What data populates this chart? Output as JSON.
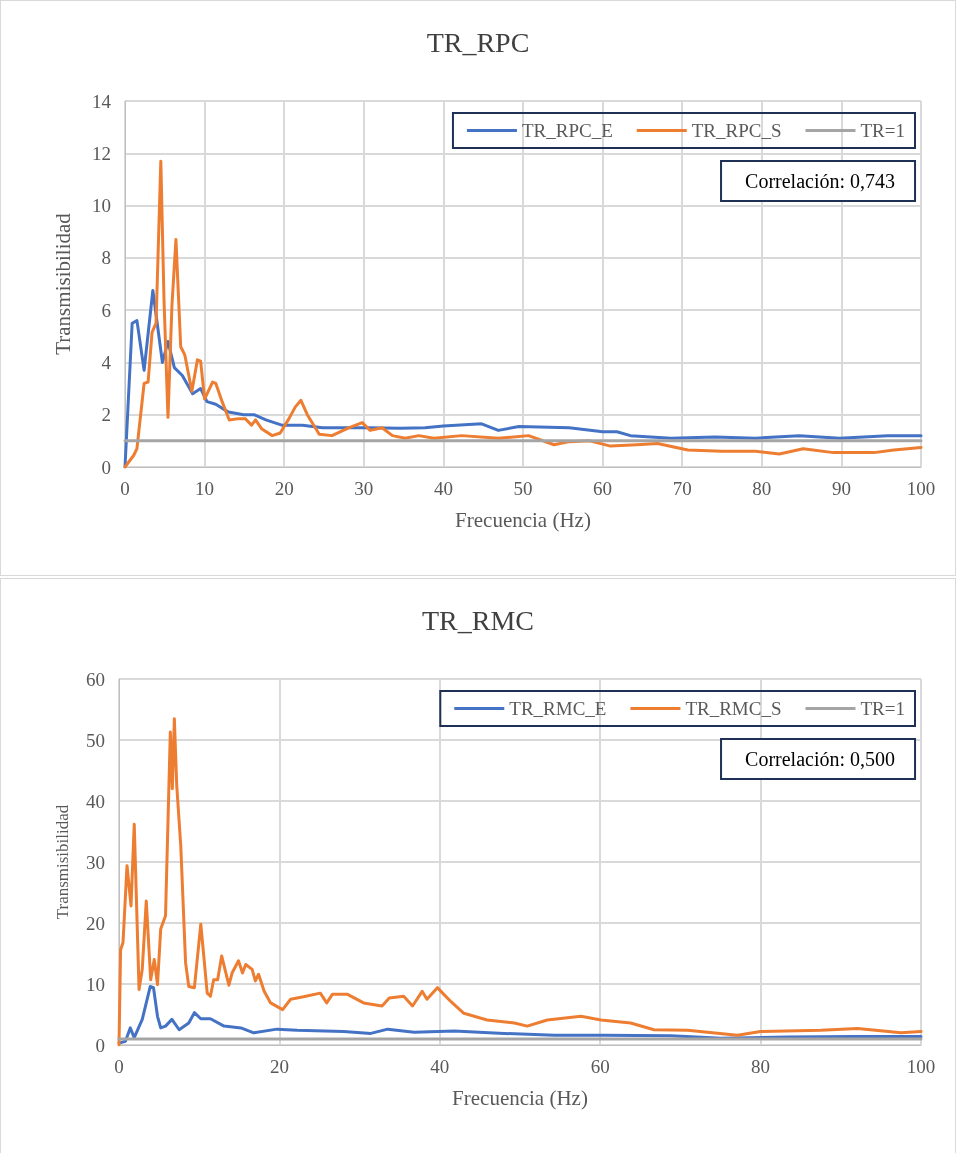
{
  "chart_data": [
    {
      "type": "line",
      "title": "TR_RPC",
      "xlabel": "Frecuencia (Hz)",
      "ylabel": "Transmisibilidad",
      "annotations": [
        "Correlación: 0,743"
      ],
      "xlim": [
        0,
        100
      ],
      "xticks": [
        0,
        10,
        20,
        30,
        40,
        50,
        60,
        70,
        80,
        90,
        100
      ],
      "ylim": [
        0,
        14
      ],
      "yticks": [
        0,
        2,
        4,
        6,
        8,
        10,
        12,
        14
      ],
      "grid": true,
      "legend": "top right",
      "marker": "none",
      "line_style": "solid",
      "series": [
        {
          "name": "TR_RPC_E",
          "color": "#4472c4",
          "x": [
            0,
            0.9,
            1.5,
            2.4,
            3.5,
            4.7,
            5.4,
            6.2,
            7.2,
            8.5,
            9.5,
            10.3,
            11.4,
            13,
            14.9,
            16.2,
            17.7,
            19.7,
            22.3,
            24.8,
            28.1,
            30.6,
            34.6,
            37.7,
            40,
            44.8,
            46.9,
            49.5,
            55.8,
            60,
            61.8,
            63.5,
            68.6,
            74.1,
            79.2,
            84.7,
            89.8,
            95.8,
            100
          ],
          "values": [
            0,
            5.5,
            5.6,
            3.7,
            6.75,
            4.0,
            4.8,
            3.8,
            3.5,
            2.8,
            3.0,
            2.5,
            2.4,
            2.1,
            2.0,
            2.0,
            1.8,
            1.6,
            1.6,
            1.5,
            1.5,
            1.5,
            1.48,
            1.5,
            1.57,
            1.65,
            1.4,
            1.55,
            1.5,
            1.35,
            1.35,
            1.2,
            1.1,
            1.15,
            1.1,
            1.2,
            1.1,
            1.2,
            1.2
          ]
        },
        {
          "name": "TR_RPC_S",
          "color": "#ed7d31",
          "x": [
            0,
            1.1,
            1.5,
            2.4,
            2.9,
            3.4,
            3.9,
            4.5,
            4.9,
            5.4,
            5.9,
            6.4,
            7.0,
            7.5,
            8.4,
            9.1,
            9.5,
            10.0,
            11.0,
            11.4,
            12.2,
            13.1,
            14.3,
            15.1,
            15.9,
            16.4,
            17.2,
            18.5,
            19.5,
            20.6,
            21.4,
            22.1,
            22.9,
            23.5,
            24.4,
            26.0,
            28.1,
            29.8,
            30.8,
            32.3,
            33.6,
            35.2,
            36.9,
            38.8,
            42.3,
            46.9,
            50.7,
            53.9,
            55.8,
            58.4,
            61,
            64.3,
            66.9,
            70.7,
            75,
            79.2,
            82.2,
            85.2,
            89,
            94.1,
            96.6,
            100
          ],
          "values": [
            0,
            0.45,
            0.7,
            3.2,
            3.25,
            5.15,
            5.5,
            11.7,
            6.4,
            1.9,
            6.2,
            8.7,
            4.6,
            4.3,
            2.9,
            4.1,
            4.05,
            2.6,
            3.25,
            3.2,
            2.5,
            1.8,
            1.85,
            1.85,
            1.6,
            1.8,
            1.45,
            1.2,
            1.3,
            1.85,
            2.3,
            2.55,
            2.0,
            1.7,
            1.25,
            1.2,
            1.5,
            1.7,
            1.4,
            1.5,
            1.2,
            1.1,
            1.2,
            1.1,
            1.2,
            1.1,
            1.2,
            0.85,
            0.97,
            1.0,
            0.8,
            0.85,
            0.9,
            0.65,
            0.6,
            0.6,
            0.5,
            0.7,
            0.55,
            0.55,
            0.65,
            0.75
          ]
        },
        {
          "name": "TR=1",
          "color": "#a5a5a5",
          "x": [
            0,
            100
          ],
          "values": [
            1,
            1
          ]
        }
      ]
    },
    {
      "type": "line",
      "title": "TR_RMC",
      "xlabel": "Frecuencia (Hz)",
      "ylabel": "Transmisibilidad",
      "annotations": [
        "Correlación: 0,500"
      ],
      "xlim": [
        0,
        100
      ],
      "xticks": [
        0,
        20,
        40,
        60,
        80,
        100
      ],
      "ylim": [
        0,
        60
      ],
      "yticks": [
        0,
        10,
        20,
        30,
        40,
        50,
        60
      ],
      "grid": true,
      "legend": "top right",
      "marker": "none",
      "line_style": "solid",
      "series": [
        {
          "name": "TR_RMC_E",
          "color": "#4472c4",
          "x": [
            0,
            0.8,
            1.4,
            1.9,
            2.9,
            3.9,
            4.3,
            4.8,
            5.2,
            5.8,
            6.6,
            7.5,
            8.7,
            9.4,
            10.2,
            11.4,
            13.1,
            15.2,
            16.8,
            19.7,
            22.2,
            28.0,
            31.4,
            33.5,
            36.8,
            41.8,
            48,
            54.3,
            60.5,
            68.8,
            75.1,
            83.4,
            91.7,
            100
          ],
          "values": [
            0.3,
            0.6,
            2.8,
            1.2,
            4.2,
            9.6,
            9.4,
            4.7,
            2.8,
            3.1,
            4.2,
            2.5,
            3.6,
            5.3,
            4.3,
            4.3,
            3.1,
            2.8,
            2.0,
            2.6,
            2.4,
            2.2,
            1.9,
            2.6,
            2.1,
            2.3,
            1.9,
            1.6,
            1.6,
            1.5,
            1.1,
            1.3,
            1.4,
            1.4
          ]
        },
        {
          "name": "TR_RMC_S",
          "color": "#ed7d31",
          "x": [
            0,
            0.2,
            0.5,
            1.0,
            1.5,
            1.9,
            2.5,
            2.9,
            3.4,
            3.95,
            4.4,
            4.8,
            5.2,
            5.8,
            6.4,
            6.65,
            6.9,
            7.2,
            7.7,
            8.3,
            8.7,
            9.4,
            10.2,
            11.0,
            11.4,
            11.8,
            12.3,
            12.8,
            13.7,
            14.1,
            14.9,
            15.4,
            15.8,
            16.6,
            17.0,
            17.4,
            18.1,
            18.9,
            20.4,
            21.4,
            23.0,
            25.1,
            25.9,
            26.6,
            28.5,
            30.5,
            32.8,
            33.7,
            35.5,
            36.6,
            37.8,
            38.4,
            39.7,
            40.5,
            41.4,
            43.0,
            45.9,
            49.3,
            50.9,
            53.4,
            57.6,
            60.1,
            63.8,
            66.7,
            70.9,
            77.1,
            80,
            87.5,
            92.1,
            97.5,
            100
          ],
          "values": [
            0,
            15.6,
            16.8,
            29.4,
            22.8,
            36.2,
            9.1,
            12.4,
            23.6,
            10.7,
            14,
            9.9,
            19,
            21.2,
            51.3,
            42,
            53.5,
            42.5,
            32.7,
            13.5,
            9.6,
            9.4,
            19.8,
            8.5,
            8,
            10.7,
            10.7,
            14.6,
            9.8,
            11.8,
            13.8,
            11.8,
            13.2,
            12.4,
            10.5,
            11.6,
            8.8,
            6.9,
            5.8,
            7.5,
            7.9,
            8.5,
            6.9,
            8.3,
            8.3,
            6.9,
            6.4,
            7.7,
            8.0,
            6.4,
            8.8,
            7.5,
            9.4,
            8.3,
            7.1,
            5.2,
            4.1,
            3.6,
            3.1,
            4.1,
            4.7,
            4.1,
            3.6,
            2.5,
            2.4,
            1.6,
            2.2,
            2.4,
            2.7,
            2.0,
            2.2
          ]
        },
        {
          "name": "TR=1",
          "color": "#a5a5a5",
          "x": [
            0,
            100
          ],
          "values": [
            1,
            1
          ]
        }
      ]
    }
  ]
}
